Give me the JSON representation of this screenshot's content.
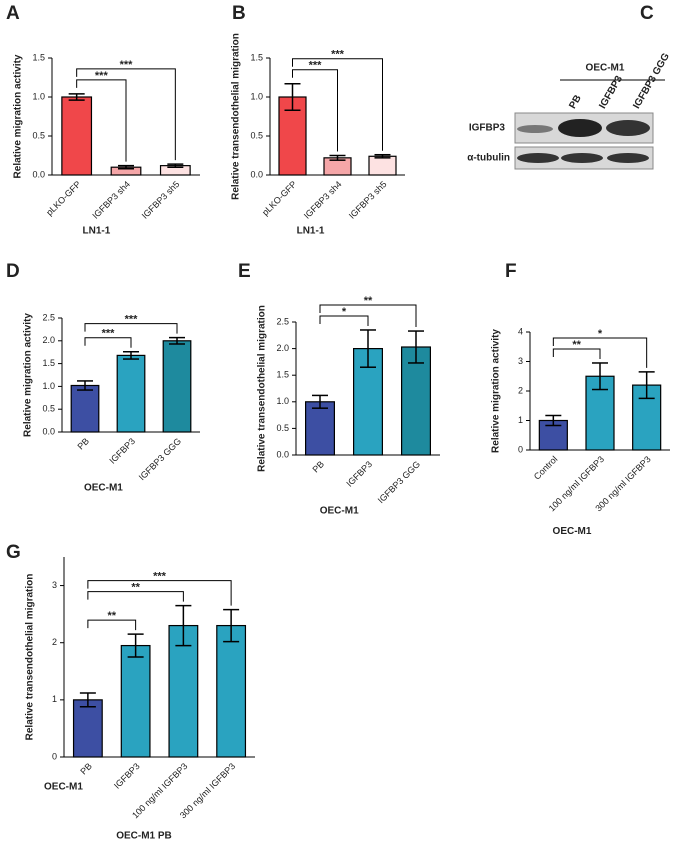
{
  "chart_data": [
    {
      "type": "bar",
      "panel": "A",
      "ylabel": "Relative migration activity",
      "xlabel": "LN1-1",
      "categories": [
        "pLKO-GFP",
        "IGFBP3 sh4",
        "IGFBP3 sh5"
      ],
      "values": [
        1.0,
        0.1,
        0.12
      ],
      "errors": [
        0.04,
        0.02,
        0.02
      ],
      "colors": [
        "#f0474a",
        "#f5a6a8",
        "#fde2e2"
      ],
      "ylim": [
        0,
        1.5
      ],
      "yticks": [
        {
          "value": 0,
          "label": "0.0"
        },
        {
          "value": 0.5,
          "label": "0.5"
        },
        {
          "value": 1,
          "label": "1.0"
        },
        {
          "value": 1.5,
          "label": "1.5"
        }
      ],
      "significance": [
        "***",
        "***"
      ]
    },
    {
      "type": "bar",
      "panel": "B",
      "ylabel": "Relative transendothelial migration",
      "xlabel": "LN1-1",
      "categories": [
        "pLKO-GFP",
        "IGFBP3 sh4",
        "IGFBP3 sh5"
      ],
      "values": [
        1.0,
        0.22,
        0.24
      ],
      "errors": [
        0.17,
        0.03,
        0.02
      ],
      "colors": [
        "#f0474a",
        "#f5a6a8",
        "#fde2e2"
      ],
      "ylim": [
        0,
        1.5
      ],
      "yticks": [
        {
          "value": 0,
          "label": "0.0"
        },
        {
          "value": 0.5,
          "label": "0.5"
        },
        {
          "value": 1,
          "label": "1.0"
        },
        {
          "value": 1.5,
          "label": "1.5"
        }
      ],
      "significance": [
        "***",
        "***"
      ]
    },
    {
      "type": "bar",
      "panel": "D",
      "ylabel": "Relative migration activity",
      "xlabel": "OEC-M1",
      "categories": [
        "PB",
        "IGFBP3",
        "IGFBP3 GGG"
      ],
      "values": [
        1.02,
        1.68,
        2.0
      ],
      "errors": [
        0.1,
        0.08,
        0.07
      ],
      "colors": [
        "#3d4fa3",
        "#2aa3c0",
        "#1e8a9e"
      ],
      "ylim": [
        0,
        2.5
      ],
      "yticks": [
        {
          "value": 0,
          "label": "0.0"
        },
        {
          "value": 0.5,
          "label": "0.5"
        },
        {
          "value": 1,
          "label": "1.0"
        },
        {
          "value": 1.5,
          "label": "1.5"
        },
        {
          "value": 2,
          "label": "2.0"
        },
        {
          "value": 2.5,
          "label": "2.5"
        }
      ],
      "significance": [
        "***",
        "***"
      ]
    },
    {
      "type": "bar",
      "panel": "E",
      "ylabel": "Relative transendothelial migration",
      "xlabel": "OEC-M1",
      "categories": [
        "PB",
        "IGFBP3",
        "IGFBP3 GGG"
      ],
      "values": [
        1.0,
        2.0,
        2.03
      ],
      "errors": [
        0.12,
        0.35,
        0.3
      ],
      "colors": [
        "#3d4fa3",
        "#2aa3c0",
        "#1e8a9e"
      ],
      "ylim": [
        0,
        2.5
      ],
      "yticks": [
        {
          "value": 0,
          "label": "0.0"
        },
        {
          "value": 0.5,
          "label": "0.5"
        },
        {
          "value": 1,
          "label": "1.0"
        },
        {
          "value": 1.5,
          "label": "1.5"
        },
        {
          "value": 2,
          "label": "2.0"
        },
        {
          "value": 2.5,
          "label": "2.5"
        }
      ],
      "significance": [
        "*",
        "**"
      ]
    },
    {
      "type": "bar",
      "panel": "F",
      "ylabel": "Relative migration activity",
      "xlabel": "OEC-M1",
      "categories": [
        "Control",
        "100 ng/ml IGFBP3",
        "300 ng/ml IGFBP3"
      ],
      "values": [
        1.0,
        2.5,
        2.2
      ],
      "errors": [
        0.17,
        0.45,
        0.45
      ],
      "colors": [
        "#3d4fa3",
        "#2aa3c0",
        "#2aa3c0"
      ],
      "ylim": [
        0,
        4
      ],
      "yticks": [
        0,
        1,
        2,
        3,
        4
      ],
      "significance": [
        "**",
        "*"
      ]
    },
    {
      "type": "bar",
      "panel": "G",
      "ylabel": "Relative transendothelial migration",
      "xlabel": "OEC-M1 PB",
      "note": "OEC-M1",
      "categories": [
        "PB",
        "IGFBP3",
        "100 ng/ml IGFBP3",
        "300 ng/ml IGFBP3"
      ],
      "values": [
        1.0,
        1.95,
        2.3,
        2.3
      ],
      "errors": [
        0.12,
        0.2,
        0.35,
        0.28
      ],
      "colors": [
        "#3d4fa3",
        "#2aa3c0",
        "#2aa3c0",
        "#2aa3c0"
      ],
      "ylim": [
        0,
        3.5
      ],
      "yticks": [
        0,
        1,
        2,
        3
      ],
      "significance": [
        "**",
        "**",
        "***"
      ]
    }
  ],
  "blot": {
    "panel": "C",
    "group": "OEC-M1",
    "lanes": [
      "PB",
      "IGFBP3",
      "IGFBP3 GGG"
    ],
    "rows": [
      "IGFBP3",
      "α-tubulin"
    ]
  }
}
